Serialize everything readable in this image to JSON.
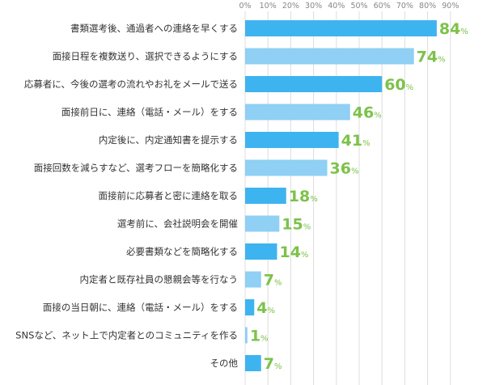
{
  "chart_data": {
    "type": "bar",
    "orientation": "horizontal",
    "x_ticks": [
      "0%",
      "10%",
      "20%",
      "30%",
      "40%",
      "50%",
      "60%",
      "70%",
      "80%",
      "90%"
    ],
    "xlim": [
      0,
      90
    ],
    "grid": true,
    "unit": "%",
    "categories": [
      "書類選考後、通過者への連絡を早くする",
      "面接日程を複数送り、選択できるようにする",
      "応募者に、今後の選考の流れやお礼をメールで送る",
      "面接前日に、連絡（電話・メール）をする",
      "内定後に、内定通知書を提示する",
      "面接回数を減らすなど、選考フローを簡略化する",
      "面接前に応募者と密に連絡を取る",
      "選考前に、会社説明会を開催",
      "必要書類などを簡略化する",
      "内定者と既存社員の懇親会等を行なう",
      "面接の当日朝に、連絡（電話・メール）をする",
      "SNSなど、ネット上で内定者とのコミュニティを作る",
      "その他"
    ],
    "values": [
      84,
      74,
      60,
      46,
      41,
      36,
      18,
      15,
      14,
      7,
      4,
      1,
      7
    ],
    "colors": {
      "bar_dark": "#3db4ef",
      "bar_light": "#8fd0f4",
      "value_label": "#7cc24a",
      "grid": "#dddddd",
      "category_text": "#333333",
      "tick_text": "#888888"
    }
  }
}
